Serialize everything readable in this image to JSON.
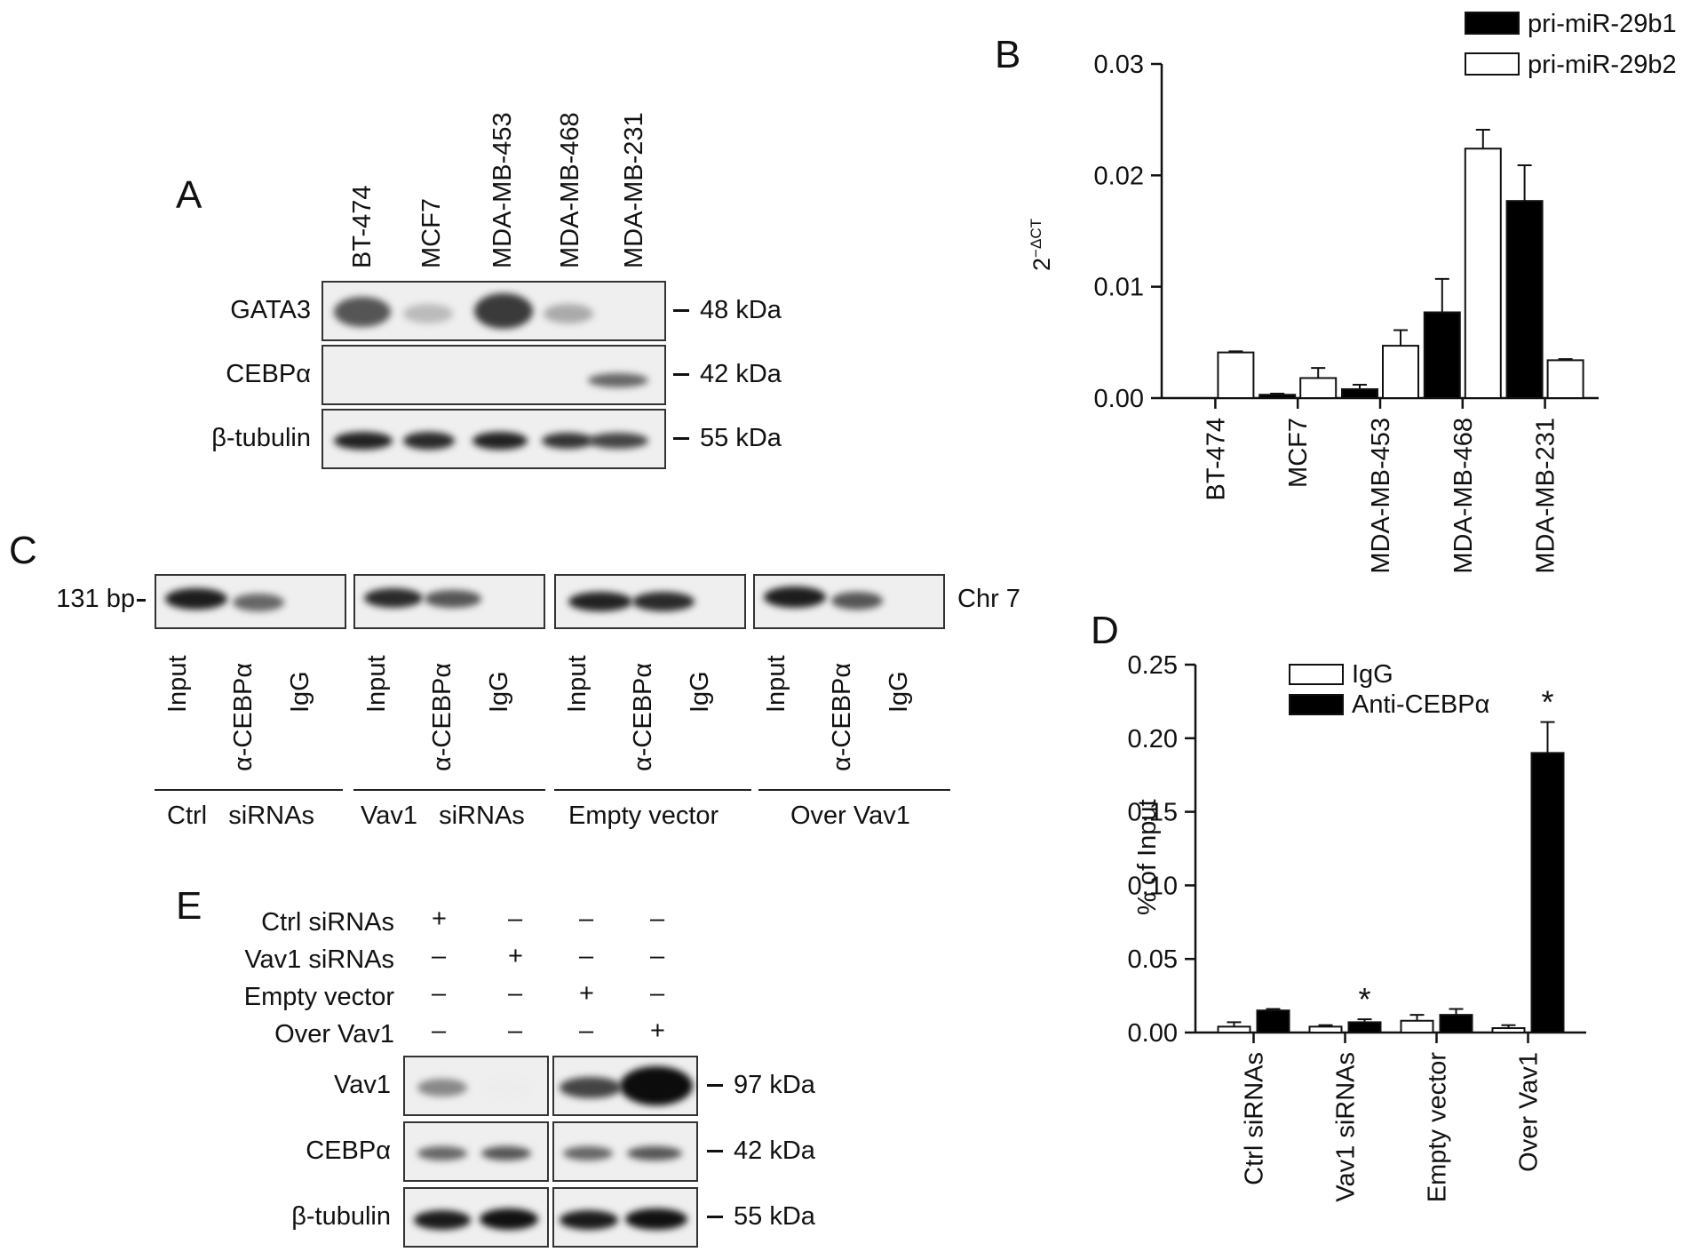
{
  "panelA": {
    "label": "A",
    "lanes": [
      "BT-474",
      "MCF7",
      "MDA-MB-453",
      "MDA-MB-468",
      "MDA-MB-231"
    ],
    "rows": [
      {
        "name": "GATA3",
        "size": "48 kDa"
      },
      {
        "name": "CEBPα",
        "size": "42 kDa"
      },
      {
        "name": "β-tubulin",
        "size": "55 kDa"
      }
    ]
  },
  "panelB": {
    "label": "B"
  },
  "panelC": {
    "label": "C",
    "bp_label": "131 bp",
    "right_label": "Chr 7",
    "lanes": [
      "Input",
      "α-CEBPα",
      "IgG",
      "Input",
      "α-CEBPα",
      "IgG",
      "Input",
      "α-CEBPα",
      "IgG",
      "Input",
      "α-CEBPα",
      "IgG"
    ],
    "groups": [
      "Ctrl   siRNAs",
      "Vav1   siRNAs",
      "Empty vector",
      "Over Vav1"
    ]
  },
  "panelD": {
    "label": "D"
  },
  "panelE": {
    "label": "E",
    "conditions": [
      {
        "name": "Ctrl siRNAs",
        "signs": [
          "+",
          "–",
          "–",
          "–"
        ]
      },
      {
        "name": "Vav1 siRNAs",
        "signs": [
          "–",
          "+",
          "–",
          "–"
        ]
      },
      {
        "name": "Empty vector",
        "signs": [
          "–",
          "–",
          "+",
          "–"
        ]
      },
      {
        "name": "Over Vav1",
        "signs": [
          "–",
          "–",
          "–",
          "+"
        ]
      }
    ],
    "rows": [
      {
        "name": "Vav1",
        "size": "97 kDa"
      },
      {
        "name": "CEBPα",
        "size": "42 kDa"
      },
      {
        "name": "β-tubulin",
        "size": "55 kDa"
      }
    ]
  },
  "chart_data": [
    {
      "type": "bar",
      "panel": "B",
      "ylabel_base": "2",
      "ylabel_exp": "−ΔCT",
      "categories": [
        "BT-474",
        "MCF7",
        "MDA-MB-453",
        "MDA-MB-468",
        "MDA-MB-231"
      ],
      "series": [
        {
          "name": "pri-miR-29b1",
          "values": [
            0.0,
            0.0003,
            0.0008,
            0.0077,
            0.0177
          ],
          "errors": [
            0.0,
            0.0001,
            0.0004,
            0.003,
            0.0032
          ],
          "color": "#000000"
        },
        {
          "name": "pri-miR-29b2",
          "values": [
            0.0041,
            0.0018,
            0.0047,
            0.0224,
            0.0034
          ],
          "errors": [
            0.0001,
            0.0009,
            0.0014,
            0.0017,
            0.0001
          ],
          "color": "#ffffff"
        }
      ],
      "ylim": [
        0,
        0.03
      ],
      "yticks": [
        "0.00",
        "0.01",
        "0.02",
        "0.03"
      ],
      "legend": "top-right"
    },
    {
      "type": "bar",
      "panel": "D",
      "ylabel": "% of Input",
      "categories": [
        "Ctrl siRNAs",
        "Vav1 siRNAs",
        "Empty vector",
        "Over Vav1"
      ],
      "series": [
        {
          "name": "IgG",
          "values": [
            0.004,
            0.004,
            0.008,
            0.003
          ],
          "errors": [
            0.003,
            0.001,
            0.004,
            0.002
          ],
          "color": "#ffffff"
        },
        {
          "name": "Anti-CEBPα",
          "values": [
            0.015,
            0.007,
            0.012,
            0.19
          ],
          "errors": [
            0.001,
            0.002,
            0.004,
            0.021
          ],
          "color": "#000000"
        }
      ],
      "annotations": [
        {
          "category": "Vav1 siRNAs",
          "text": "*"
        },
        {
          "category": "Over Vav1",
          "text": "*"
        }
      ],
      "ylim": [
        0,
        0.25
      ],
      "yticks": [
        "0.00",
        "0.05",
        "0.10",
        "0.15",
        "0.20",
        "0.25"
      ],
      "legend": "top-left"
    }
  ]
}
